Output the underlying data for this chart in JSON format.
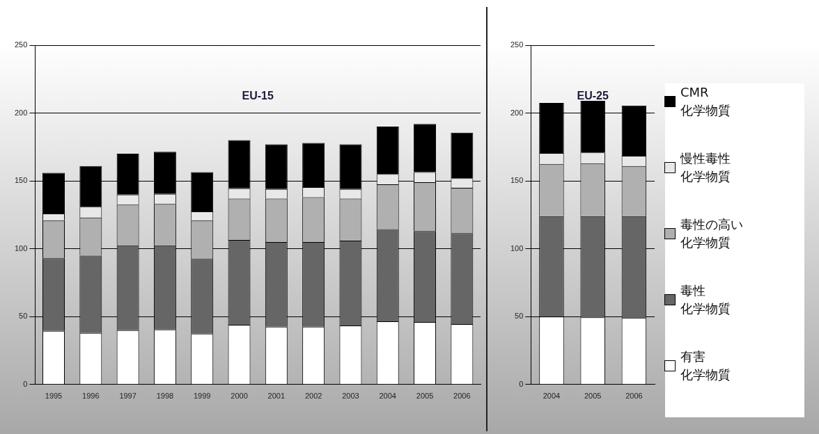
{
  "chart_data": [
    {
      "type": "bar",
      "title": "EU-15",
      "stacked": true,
      "grid": "y",
      "legend": false,
      "categories": [
        "1995",
        "1996",
        "1997",
        "1998",
        "1999",
        "2000",
        "2001",
        "2002",
        "2003",
        "2004",
        "2005",
        "2006"
      ],
      "ylim": [
        0,
        250
      ],
      "yticks": [
        0,
        50,
        100,
        150,
        200,
        250
      ],
      "series": [
        {
          "color": "#ffffff",
          "values": [
            39.5,
            38,
            40,
            40.5,
            37.5,
            44,
            42.5,
            42.5,
            43.5,
            46.5,
            46,
            44.5
          ]
        },
        {
          "color": "#666666",
          "values": [
            53.5,
            57,
            62.5,
            62,
            55,
            62.5,
            62.5,
            62.5,
            62.5,
            68,
            67,
            67
          ]
        },
        {
          "color": "#b0b0b0",
          "values": [
            28,
            28,
            30,
            30.5,
            28.5,
            30.5,
            32,
            33,
            31,
            33,
            36,
            33.5
          ]
        },
        {
          "color": "#e8e8e8",
          "values": [
            5,
            8,
            7.5,
            7.5,
            6.5,
            7.5,
            7,
            7.5,
            7,
            7.5,
            7.5,
            7
          ]
        },
        {
          "color": "#000000",
          "values": [
            30,
            30,
            30,
            31,
            29,
            35.5,
            33,
            32.5,
            33,
            35,
            35.5,
            33.5
          ]
        }
      ]
    },
    {
      "type": "bar",
      "title": "EU-25",
      "stacked": true,
      "grid": "y",
      "legend": "right",
      "categories": [
        "2004",
        "2005",
        "2006"
      ],
      "ylim": [
        0,
        250
      ],
      "yticks": [
        0,
        50,
        100,
        150,
        200,
        250
      ],
      "series": [
        {
          "name": "有害化学物質",
          "color": "#ffffff",
          "values": [
            50,
            49.5,
            49
          ]
        },
        {
          "name": "毒性化学物質",
          "color": "#666666",
          "values": [
            74,
            74.5,
            75
          ]
        },
        {
          "name": "毒性の高い化学物質",
          "color": "#b0b0b0",
          "values": [
            38.5,
            39,
            37
          ]
        },
        {
          "name": "慢性毒性化学物質",
          "color": "#e8e8e8",
          "values": [
            8,
            8,
            7.5
          ]
        },
        {
          "name": "CMR化学物質",
          "color": "#000000",
          "values": [
            37,
            38,
            37
          ]
        }
      ]
    }
  ]
}
